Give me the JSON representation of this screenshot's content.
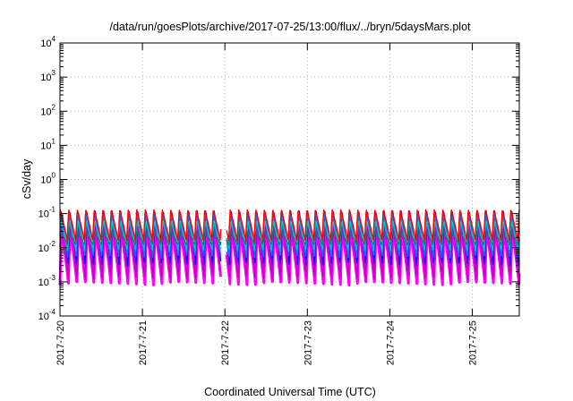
{
  "chart_data": {
    "type": "line",
    "title": "/data/run/goesPlots/archive/2017-07-25/13:00/flux/../bryn/5daysMars.plot",
    "xlabel": "Coordinated Universal Time (UTC)",
    "ylabel": "cSv/day",
    "yscale": "log",
    "ylim": [
      0.0001,
      10000
    ],
    "xlim": [
      0,
      5.57
    ],
    "grid": true,
    "x_ticks": [
      {
        "pos": 0,
        "label": "2017-7-20"
      },
      {
        "pos": 1,
        "label": "2017-7-21"
      },
      {
        "pos": 2,
        "label": "2017-7-22"
      },
      {
        "pos": 3,
        "label": "2017-7-23"
      },
      {
        "pos": 4,
        "label": "2017-7-24"
      },
      {
        "pos": 5,
        "label": "2017-7-25"
      }
    ],
    "y_ticks": [
      {
        "exp": "-4"
      },
      {
        "exp": "-3"
      },
      {
        "exp": "-2"
      },
      {
        "exp": "-1"
      },
      {
        "exp": "0"
      },
      {
        "exp": "1"
      },
      {
        "exp": "2"
      },
      {
        "exp": "3"
      },
      {
        "exp": "4"
      }
    ],
    "oscillation": {
      "cycles_per_day": 9.7,
      "gap_days": [
        1.95,
        2.02
      ]
    },
    "series": [
      {
        "color": "#ff00ff",
        "peak": 0.035,
        "trough": 0.0008
      },
      {
        "color": "#c000c0",
        "peak": 0.045,
        "trough": 0.0012
      },
      {
        "color": "#0000ff",
        "peak": 0.12,
        "trough": 0.003
      },
      {
        "color": "#0080ff",
        "peak": 0.1,
        "trough": 0.005
      },
      {
        "color": "#00c0c0",
        "peak": 0.06,
        "trough": 0.008
      },
      {
        "color": "#008080",
        "peak": 0.03,
        "trough": 0.012
      },
      {
        "color": "#ff0000",
        "peak": 0.13,
        "trough": 0.015
      }
    ]
  }
}
